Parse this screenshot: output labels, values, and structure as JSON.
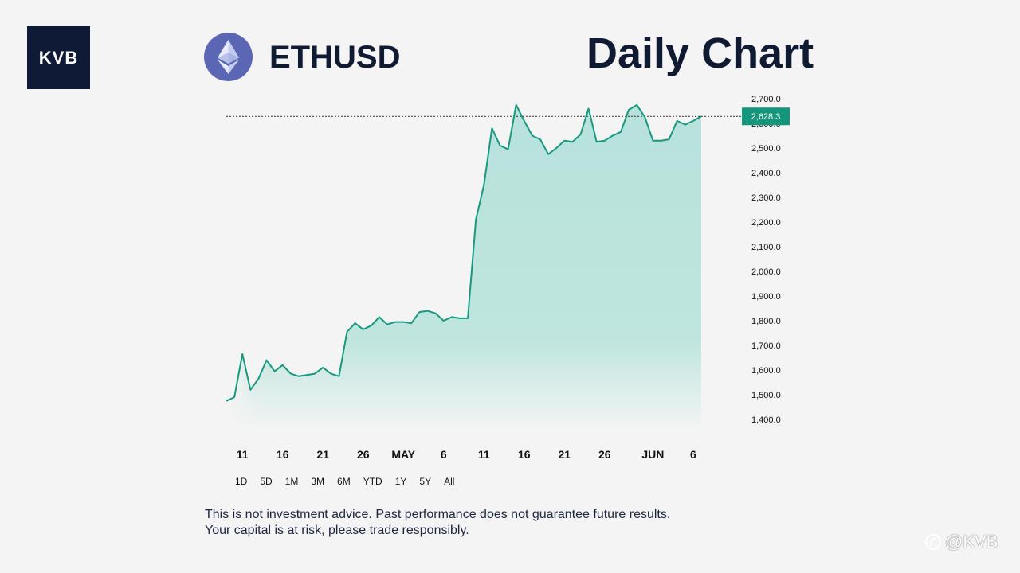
{
  "brand": {
    "logo_text": "KVB",
    "watermark": "@KVB"
  },
  "header": {
    "symbol": "ETHUSD",
    "title": "Daily Chart",
    "coin_icon": "ethereum-icon"
  },
  "colors": {
    "line": "#17987f",
    "area_top": "#b7e2db",
    "badge": "#14967c",
    "navy": "#111a33",
    "background": "#f4f4f4"
  },
  "range_buttons": [
    "1D",
    "5D",
    "1M",
    "3M",
    "6M",
    "YTD",
    "1Y",
    "5Y",
    "All"
  ],
  "disclaimer": {
    "line1": "This is not investment advice. Past performance does not guarantee future results.",
    "line2": "Your capital is at risk, please trade responsibly."
  },
  "chart_data": {
    "type": "area",
    "title": "Daily Chart",
    "series": [
      {
        "name": "ETHUSD",
        "values": [
          1475,
          1490,
          1665,
          1520,
          1565,
          1640,
          1595,
          1620,
          1585,
          1575,
          1580,
          1585,
          1610,
          1585,
          1575,
          1755,
          1790,
          1765,
          1780,
          1815,
          1785,
          1795,
          1795,
          1790,
          1835,
          1840,
          1830,
          1800,
          1815,
          1810,
          1810,
          2210,
          2350,
          2580,
          2510,
          2495,
          2675,
          2610,
          2550,
          2535,
          2475,
          2500,
          2530,
          2525,
          2555,
          2660,
          2525,
          2530,
          2550,
          2565,
          2655,
          2675,
          2625,
          2530,
          2530,
          2535,
          2610,
          2595,
          2610,
          2628.3
        ]
      }
    ],
    "x_ticks": [
      {
        "label": "11",
        "index": 2
      },
      {
        "label": "16",
        "index": 7
      },
      {
        "label": "21",
        "index": 12
      },
      {
        "label": "26",
        "index": 17
      },
      {
        "label": "MAY",
        "index": 22
      },
      {
        "label": "6",
        "index": 27
      },
      {
        "label": "11",
        "index": 32
      },
      {
        "label": "16",
        "index": 37
      },
      {
        "label": "21",
        "index": 42
      },
      {
        "label": "26",
        "index": 47
      },
      {
        "label": "JUN",
        "index": 53
      },
      {
        "label": "6",
        "index": 58
      }
    ],
    "y_ticks": [
      "2,700.0",
      "2,600.0",
      "2,500.0",
      "2,400.0",
      "2,300.0",
      "2,200.0",
      "2,100.0",
      "2,000.0",
      "1,900.0",
      "1,800.0",
      "1,700.0",
      "1,600.0",
      "1,500.0",
      "1,400.0"
    ],
    "y_tick_values": [
      2700,
      2600,
      2500,
      2400,
      2300,
      2200,
      2100,
      2000,
      1900,
      1800,
      1700,
      1600,
      1500,
      1400
    ],
    "ylim": [
      1400,
      2700
    ],
    "current_value": 2628.3,
    "current_label": "2,628.3",
    "grid": false
  }
}
